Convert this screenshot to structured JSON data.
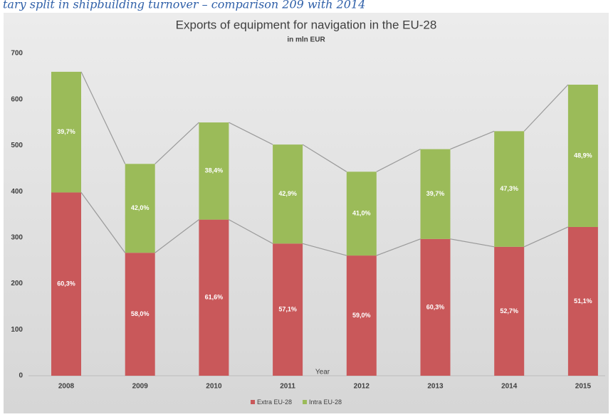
{
  "caption": "tary split in shipbuilding turnover – comparison 209 with 2014",
  "chart_data": {
    "type": "stacked_bar",
    "title": "Exports of equipment for navigation in the EU-28",
    "subtitle": "in mln EUR",
    "xlabel": "Year",
    "categories": [
      "2008",
      "2009",
      "2010",
      "2011",
      "2012",
      "2013",
      "2014",
      "2015"
    ],
    "series": [
      {
        "name": "Extra EU-28",
        "color": "#c9585a",
        "values": [
          398,
          267,
          339,
          287,
          261,
          297,
          280,
          323
        ],
        "share_labels": [
          "60,3%",
          "58,0%",
          "61,6%",
          "57,1%",
          "59,0%",
          "60,3%",
          "52,7%",
          "51,1%"
        ]
      },
      {
        "name": "Intra EU-28",
        "color": "#9bbb59",
        "values": [
          262,
          193,
          211,
          215,
          182,
          195,
          251,
          309
        ],
        "share_labels": [
          "39,7%",
          "42,0%",
          "38,4%",
          "42,9%",
          "41,0%",
          "39,7%",
          "47,3%",
          "48,9%"
        ]
      }
    ],
    "ylim": [
      0,
      700
    ],
    "yticks": [
      0,
      100,
      200,
      300,
      400,
      500,
      600,
      700
    ],
    "grid": false,
    "legend": "bottom",
    "connector_color": "#9a9a9a"
  }
}
